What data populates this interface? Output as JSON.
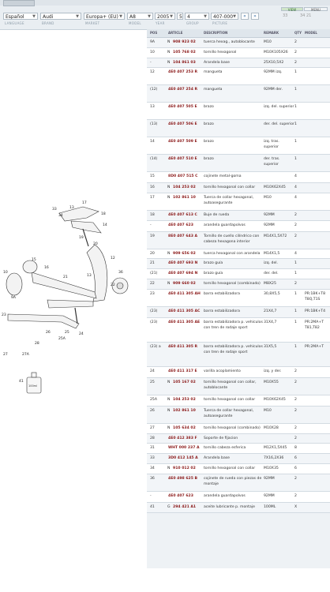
{
  "filters": {
    "language": "Español",
    "brand": "Audi",
    "market": "Europa+ (EU)",
    "model": "A8",
    "year": "2005",
    "group": "5",
    "subgroup": "4",
    "picture": "407-000",
    "page_current": "33",
    "page_other": "34 21",
    "labels": [
      "LANGUAGE",
      "BRAND",
      "MARKET",
      "MODEL",
      "YEAR",
      "GROUP",
      "PICTURE"
    ],
    "view_buttons": [
      "VIEW",
      "MENU"
    ]
  },
  "table": {
    "headers": [
      "POS",
      "ARTICLE",
      "DESCRIPTION",
      "REMARK",
      "QTY",
      "MODEL"
    ],
    "rows": [
      {
        "pos": "9A",
        "n": "N",
        "article": "908 923 02",
        "desc": "tuerca hexag., autoblocante",
        "remark": "M10",
        "qty": "2",
        "model": ""
      },
      {
        "pos": "10",
        "n": "N",
        "article": "105 768 02",
        "desc": "tornillo hexagonal",
        "remark": "M10X105X26",
        "qty": "2",
        "model": ""
      },
      {
        "pos": "-",
        "n": "N",
        "article": "104 861 03",
        "desc": "Arandela base",
        "remark": "25X10,5X2",
        "qty": "2",
        "model": ""
      },
      {
        "pos": "12",
        "n": "",
        "article": "4E0 407 253 R",
        "desc": "mangueta",
        "remark": "92MM izq.",
        "qty": "1",
        "model": ""
      },
      {
        "pos": "(12)",
        "n": "",
        "article": "4E0 407 254 R",
        "desc": "mangueta",
        "remark": "92MM der.",
        "qty": "1",
        "model": ""
      },
      {
        "pos": "13",
        "n": "",
        "article": "4E0 407 505 E",
        "desc": "brazo",
        "remark": "izq. del. superior",
        "qty": "1",
        "model": ""
      },
      {
        "pos": "(13)",
        "n": "",
        "article": "4E0 407 506 E",
        "desc": "brazo",
        "remark": "der. del. superior",
        "qty": "1",
        "model": ""
      },
      {
        "pos": "14",
        "n": "",
        "article": "4E0 407 509 E",
        "desc": "brazo",
        "remark": "izq. tras. superior",
        "qty": "1",
        "model": ""
      },
      {
        "pos": "(14)",
        "n": "",
        "article": "4E0 407 510 E",
        "desc": "brazo",
        "remark": "der. tras. superior",
        "qty": "1",
        "model": ""
      },
      {
        "pos": "15",
        "n": "",
        "article": "8D0 407 515 C",
        "desc": "cojinete metal-goma",
        "remark": "",
        "qty": "4",
        "model": ""
      },
      {
        "pos": "16",
        "n": "N",
        "article": "104 253 02",
        "desc": "tornillo hexagonal con collar",
        "remark": "M10X62X45",
        "qty": "4",
        "model": ""
      },
      {
        "pos": "17",
        "n": "N",
        "article": "102 861 10",
        "desc": "Tuerca de collar hexagonal, autoasegurante",
        "remark": "M10",
        "qty": "4",
        "model": ""
      },
      {
        "pos": "18",
        "n": "",
        "article": "4E0 407 613 C",
        "desc": "Buje de rueda",
        "remark": "92MM",
        "qty": "2",
        "model": ""
      },
      {
        "pos": "-",
        "n": "",
        "article": "4E0 407 623",
        "desc": "arandela guardapolvos",
        "remark": "92MM",
        "qty": "2",
        "model": ""
      },
      {
        "pos": "19",
        "n": "",
        "article": "8E0 407 643 A",
        "desc": "Tornillo de cuello cilíndrico con cabeza hexagona interior",
        "remark": "M14X1,5X72",
        "qty": "2",
        "model": ""
      },
      {
        "pos": "20",
        "n": "N",
        "article": "909 656 02",
        "desc": "tuerca hexagonal con arandela",
        "remark": "M14X1,5",
        "qty": "4",
        "model": ""
      },
      {
        "pos": "21",
        "n": "",
        "article": "4E0 407 693 N",
        "desc": "brazo guía",
        "remark": "izq. del.",
        "qty": "1",
        "model": ""
      },
      {
        "pos": "(21)",
        "n": "",
        "article": "4E0 407 694 N",
        "desc": "brazo guía",
        "remark": "der. del.",
        "qty": "1",
        "model": ""
      },
      {
        "pos": "22",
        "n": "N",
        "article": "909 660 02",
        "desc": "tornillo hexagonal (combinado)",
        "remark": "M8X25",
        "qty": "2",
        "model": ""
      },
      {
        "pos": "23",
        "n": "",
        "article": "4E0 411 305 AH",
        "desc": "barra estabilizadora",
        "remark": "30,8X5,5",
        "qty": "1",
        "model": "PR:1BK+T8 T8Q,T1S"
      },
      {
        "pos": "(23)",
        "n": "",
        "article": "4E0 411 305 AC",
        "desc": "barra estabilizadora",
        "remark": "21X4,7",
        "qty": "1",
        "model": "PR:1BK+T4"
      },
      {
        "pos": "(23)",
        "n": "",
        "article": "4E0 411 305 AE",
        "desc": "barra estabilizadora p. vehículos con tren de rodaje sport",
        "remark": "31X4,7",
        "qty": "1",
        "model": "PR:2MA+T T81,T82"
      },
      {
        "pos": "(23) a",
        "n": "",
        "article": "4E0 411 305 R",
        "desc": "barra estabilizadora p. vehículos con tren de rodaje sport",
        "remark": "31X5,5",
        "qty": "1",
        "model": "PR:2MA+T"
      },
      {
        "pos": "24",
        "n": "",
        "article": "4E0 411 317 E",
        "desc": "varilla acoplamiento",
        "remark": "izq. y der.",
        "qty": "2",
        "model": ""
      },
      {
        "pos": "25",
        "n": "N",
        "article": "105 167 02",
        "desc": "tornillo hexagonal con collar, autoblocante",
        "remark": "M10X55",
        "qty": "2",
        "model": ""
      },
      {
        "pos": "25A",
        "n": "N",
        "article": "104 253 02",
        "desc": "tornillo hexagonal con collar",
        "remark": "M10X62X45",
        "qty": "2",
        "model": ""
      },
      {
        "pos": "26",
        "n": "N",
        "article": "102 861 10",
        "desc": "Tuerca de collar hexagonal, autoasegurante",
        "remark": "M10",
        "qty": "2",
        "model": ""
      },
      {
        "pos": "27",
        "n": "N",
        "article": "105 634 02",
        "desc": "tornillo hexagonal (combinado)",
        "remark": "M10X28",
        "qty": "2",
        "model": ""
      },
      {
        "pos": "28",
        "n": "",
        "article": "4E0 412 383 F",
        "desc": "Soporte de fijacion",
        "remark": "",
        "qty": "2",
        "model": ""
      },
      {
        "pos": "31",
        "n": "",
        "article": "WHT 000 237 A",
        "desc": "tornillo cabeza esferica",
        "remark": "M12X1,5X45",
        "qty": "8",
        "model": ""
      },
      {
        "pos": "33",
        "n": "",
        "article": "3D0 412 145 A",
        "desc": "Arandela base",
        "remark": "7X16,2X36",
        "qty": "6",
        "model": ""
      },
      {
        "pos": "34",
        "n": "N",
        "article": "910 012 02",
        "desc": "tornillo hexagonal con collar",
        "remark": "M10X35",
        "qty": "6",
        "model": ""
      },
      {
        "pos": "36",
        "n": "",
        "article": "4E0 498 625 B",
        "desc": "cojinete de rueda con piezas de montaje",
        "remark": "92MM",
        "qty": "2",
        "model": ""
      },
      {
        "pos": "-",
        "n": "",
        "article": "4E0 407 623",
        "desc": "arandela guardapolvos",
        "remark": "92MM",
        "qty": "2",
        "model": ""
      },
      {
        "pos": "41",
        "n": "G",
        "article": "294 421 A1",
        "desc": "aceite lubricante p. montaje",
        "remark": "100ML",
        "qty": "X",
        "model": ""
      }
    ]
  },
  "diagram": {
    "callouts": [
      "33",
      "34",
      "13",
      "17",
      "18",
      "14",
      "19",
      "12",
      "20",
      "15",
      "16",
      "36",
      "21",
      "10",
      "9A",
      "22",
      "13",
      "23",
      "24",
      "25",
      "25A",
      "26",
      "27",
      "28",
      "27A",
      "41"
    ],
    "bottle_label": "100ml"
  },
  "colors": {
    "article": "#8b1a1a",
    "accent": "#3a6ea5",
    "header": "#dfe6ec"
  }
}
